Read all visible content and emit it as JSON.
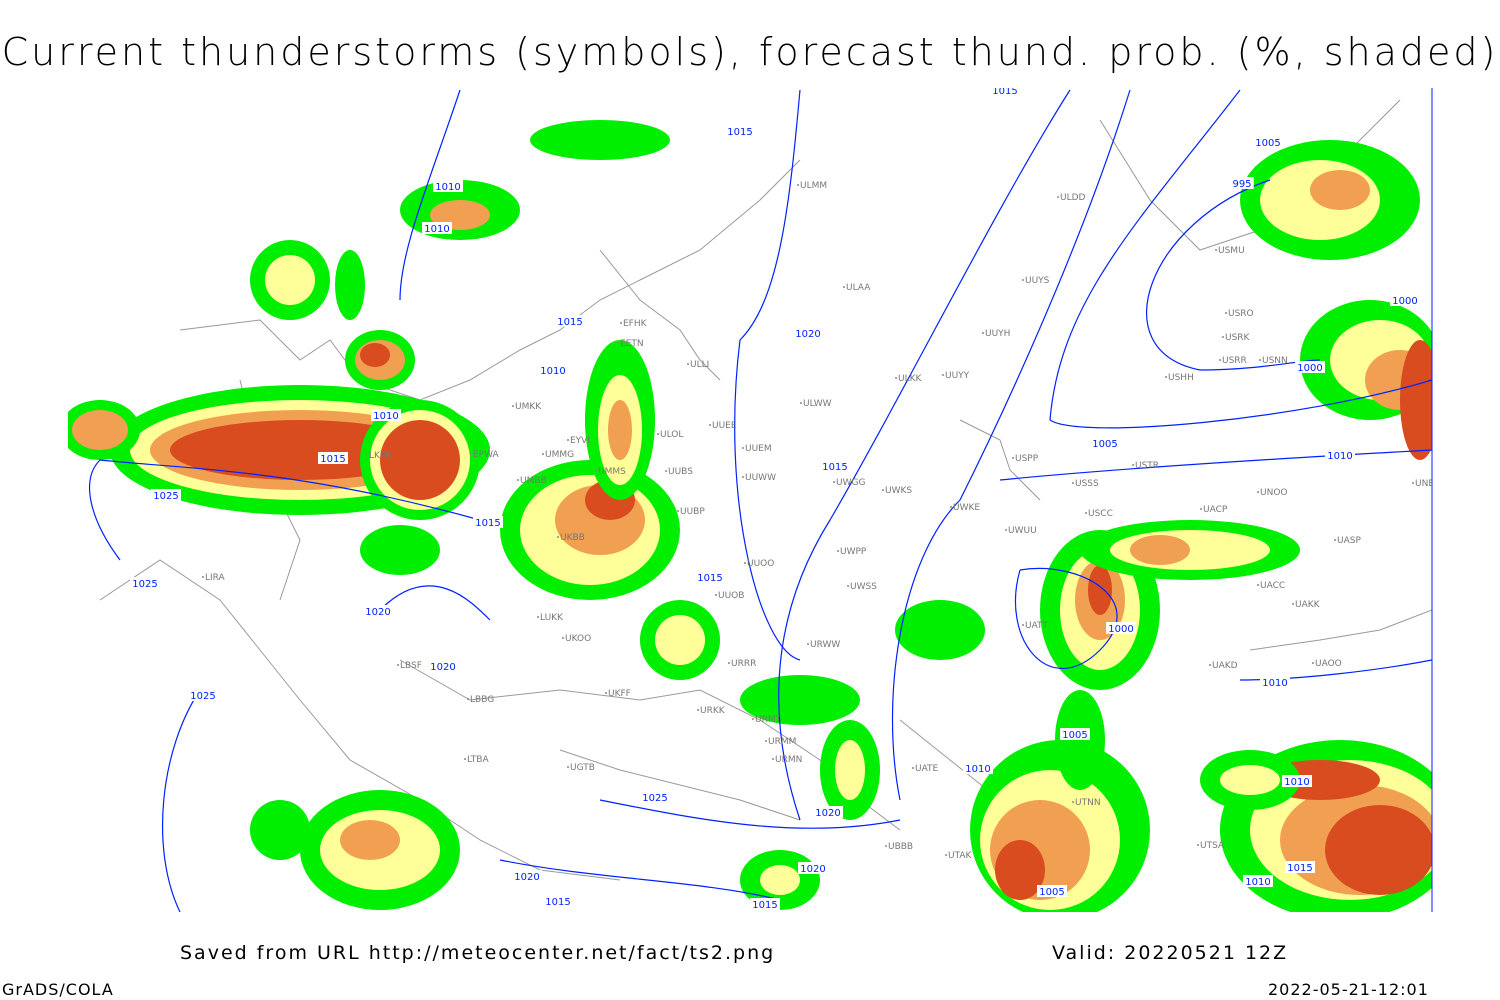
{
  "title": "Current thunderstorms (symbols), forecast thund. prob. (%, shaded)",
  "footer": {
    "source": "Saved from URL http://meteocenter.net/fact/ts2.png",
    "valid": "Valid: 20220521 12Z",
    "software": "GrADS/COLA",
    "timestamp": "2022-05-21-12:01"
  },
  "colors": {
    "prob_low": "#00ee00",
    "prob_mid": "#ffff99",
    "prob_high": "#f0a050",
    "prob_max": "#d84c20",
    "isobar": "#0022ff",
    "coast": "#999999"
  },
  "isobar_labels": [
    "1015",
    "1010",
    "1010",
    "1015",
    "1010",
    "1020",
    "1015",
    "1025",
    "1010",
    "1015",
    "1015",
    "1025",
    "1020",
    "1020",
    "1025",
    "1015",
    "1015",
    "1020",
    "1005",
    "1000",
    "1000",
    "995",
    "1000",
    "1005",
    "1010",
    "1010",
    "1005",
    "1010",
    "1025",
    "1020",
    "1015",
    "1010",
    "1015",
    "1015",
    "1005",
    "1020",
    "1010"
  ],
  "stations": [
    "EFHK",
    "EETN",
    "ULLI",
    "ULOL",
    "UMKK",
    "EYVI",
    "UMMG",
    "EPWA",
    "UMBB",
    "UUEE",
    "UUWW",
    "UWGG",
    "UWKS",
    "UWKE",
    "UWUU",
    "USSS",
    "USCC",
    "UUOO",
    "UWPP",
    "UWSS",
    "URWW",
    "UKBB",
    "UKOO",
    "LUKK",
    "LBSF",
    "LIRA",
    "UATT",
    "UACC",
    "UAKK",
    "UAKD",
    "UAOO",
    "USTR",
    "UNOO",
    "UNBB",
    "USRR",
    "USRK",
    "USRO",
    "USMU",
    "ULDD",
    "UUYS",
    "UUYH",
    "ULKK",
    "UUYY",
    "UMMS",
    "ULAA",
    "UUBS",
    "UUBP",
    "UUOB",
    "URRR",
    "URKK",
    "UKFF",
    "URMT",
    "URMM",
    "URMN",
    "UBBB",
    "UTAK",
    "UTNN",
    "UTSA",
    "LTBA",
    "UATE",
    "USHH",
    "USPP",
    "UUEM",
    "ULWW",
    "USNN",
    "UASP",
    "UACP",
    "ULMM",
    "LKPR",
    "LBBG",
    "UGTB"
  ]
}
